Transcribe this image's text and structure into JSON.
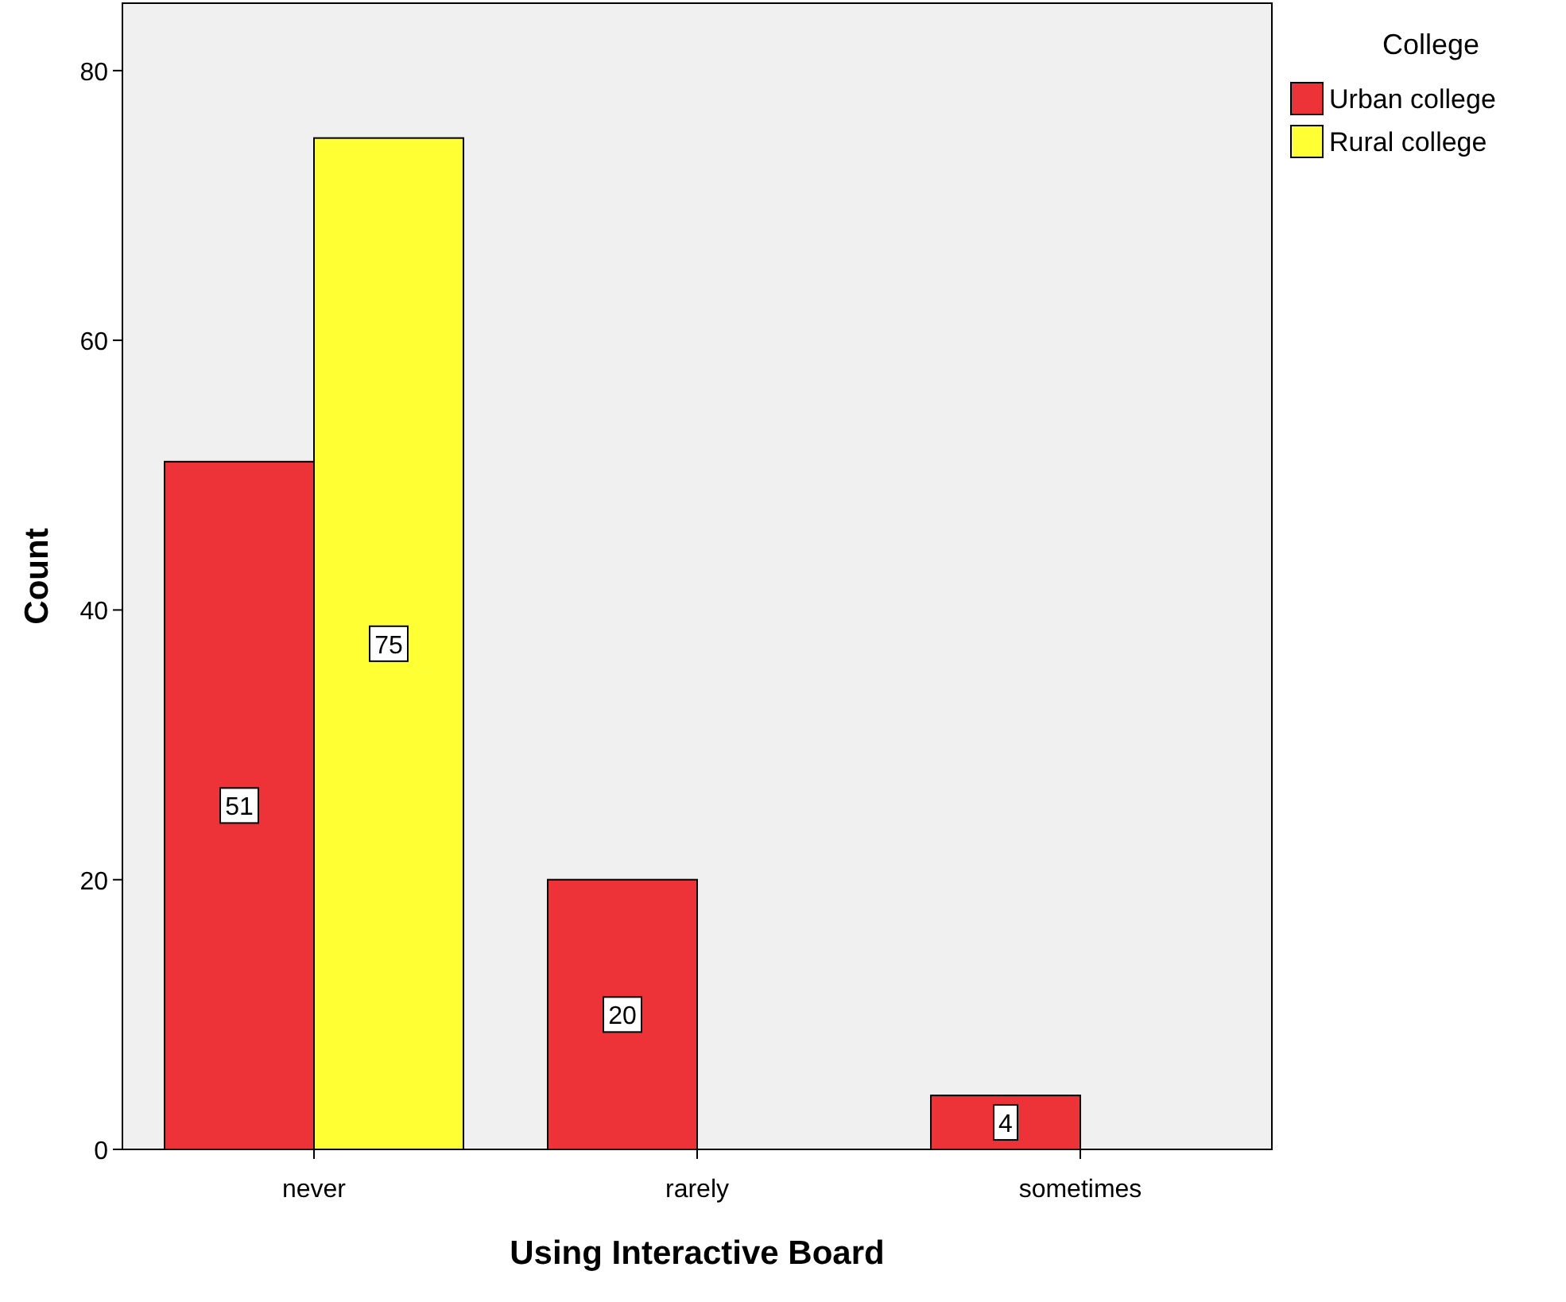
{
  "chart_data": {
    "type": "bar",
    "xlabel": "Using Interactive Board",
    "ylabel": "Count",
    "legend_title": "College",
    "categories": [
      "never",
      "rarely",
      "sometimes"
    ],
    "series": [
      {
        "name": "Urban college",
        "color": "#ee3338",
        "values": [
          51,
          20,
          4
        ]
      },
      {
        "name": "Rural college",
        "color": "#ffff33",
        "values": [
          75,
          null,
          null
        ]
      }
    ],
    "ylim": [
      0,
      85
    ],
    "yticks": [
      0,
      20,
      40,
      60,
      80
    ],
    "data_labels": true,
    "legend": "top right",
    "grid": false
  }
}
